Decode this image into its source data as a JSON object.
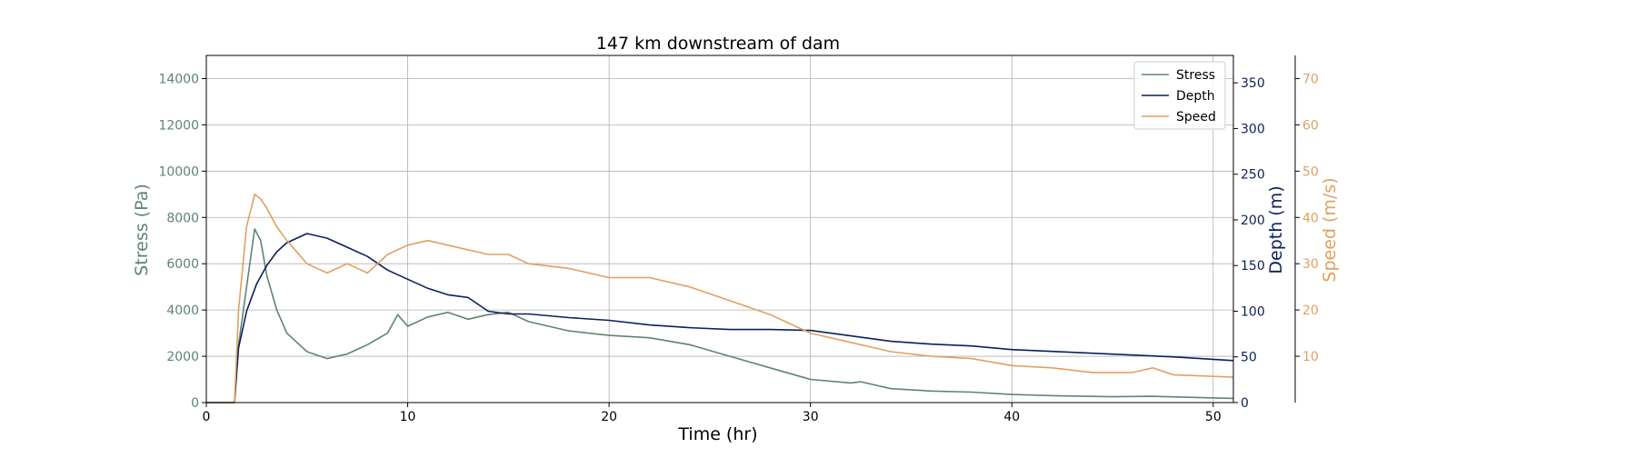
{
  "chart_data": {
    "type": "line",
    "title": "147 km downstream of dam",
    "xlabel": "Time (hr)",
    "xlim": [
      0,
      51
    ],
    "x_ticks": [
      "0",
      "10",
      "20",
      "30",
      "40",
      "50"
    ],
    "grid": true,
    "legend_position": "top-right",
    "axes": {
      "stress": {
        "label": "Stress (Pa)",
        "ylim": [
          0,
          15000
        ],
        "ticks": [
          "0",
          "2000",
          "4000",
          "6000",
          "8000",
          "10000",
          "12000",
          "14000"
        ],
        "color": "#5e8570"
      },
      "depth": {
        "label": "Depth (m)",
        "ylim": [
          0,
          380
        ],
        "ticks": [
          "0",
          "50",
          "100",
          "150",
          "200",
          "250",
          "300",
          "350"
        ],
        "color": "#0d1f5c"
      },
      "speed": {
        "label": "Speed (m/s)",
        "ylim": [
          0,
          75
        ],
        "ticks": [
          "10",
          "20",
          "30",
          "40",
          "50",
          "60",
          "70"
        ],
        "color": "#e0a060"
      }
    },
    "series": [
      {
        "name": "Stress",
        "axis": "stress",
        "color": "#5e8570",
        "x": [
          0,
          1.4,
          1.6,
          2.0,
          2.4,
          2.7,
          3.0,
          3.5,
          4.0,
          5.0,
          6.0,
          7.0,
          8.0,
          9.0,
          9.5,
          10.0,
          11.0,
          12.0,
          13.0,
          14.0,
          15.0,
          16.0,
          18.0,
          20.0,
          22.0,
          24.0,
          26.0,
          28.0,
          30.0,
          32.0,
          32.5,
          34.0,
          36.0,
          38.0,
          40.0,
          42.0,
          45.0,
          47.0,
          51.0
        ],
        "y": [
          0,
          0,
          2500,
          5000,
          7500,
          7000,
          5500,
          4000,
          3000,
          2200,
          1900,
          2100,
          2500,
          3000,
          3800,
          3300,
          3700,
          3900,
          3600,
          3800,
          3900,
          3500,
          3100,
          2900,
          2800,
          2500,
          2000,
          1500,
          1000,
          850,
          900,
          600,
          500,
          450,
          350,
          300,
          250,
          270,
          180
        ]
      },
      {
        "name": "Depth",
        "axis": "depth",
        "color": "#0d1f5c",
        "x": [
          0,
          1.4,
          1.6,
          2.0,
          2.5,
          3.0,
          3.5,
          4.0,
          5.0,
          6.0,
          7.0,
          8.0,
          9.0,
          10.0,
          11.0,
          12.0,
          13.0,
          14.0,
          15.0,
          16.0,
          18.0,
          20.0,
          22.0,
          24.0,
          26.0,
          28.0,
          30.0,
          32.0,
          34.0,
          36.0,
          38.0,
          40.0,
          42.0,
          44.0,
          46.0,
          48.0,
          51.0
        ],
        "y": [
          0,
          0,
          60,
          100,
          130,
          150,
          165,
          175,
          185,
          180,
          170,
          160,
          145,
          135,
          125,
          118,
          115,
          100,
          97,
          97,
          93,
          90,
          85,
          82,
          80,
          80,
          79,
          73,
          67,
          64,
          62,
          58,
          56,
          54,
          52,
          50,
          46
        ]
      },
      {
        "name": "Speed",
        "axis": "speed",
        "color": "#e0a060",
        "x": [
          0,
          1.4,
          1.6,
          2.0,
          2.4,
          2.7,
          3.0,
          3.5,
          4.0,
          5.0,
          6.0,
          7.0,
          8.0,
          9.0,
          9.5,
          10.0,
          11.0,
          12.0,
          13.0,
          14.0,
          15.0,
          16.0,
          18.0,
          20.0,
          22.0,
          24.0,
          26.0,
          28.0,
          30.0,
          32.0,
          34.0,
          36.0,
          38.0,
          40.0,
          42.0,
          44.0,
          46.0,
          47.0,
          48.0,
          51.0
        ],
        "y": [
          0,
          0,
          20,
          38,
          45,
          44,
          42,
          38,
          35,
          30,
          28,
          30,
          28,
          32,
          33,
          34,
          35,
          34,
          33,
          32,
          32,
          30,
          29,
          27,
          27,
          25,
          22,
          19,
          15,
          13,
          11,
          10,
          9.5,
          8,
          7.5,
          6.5,
          6.5,
          7.5,
          6,
          5.5
        ]
      }
    ]
  }
}
